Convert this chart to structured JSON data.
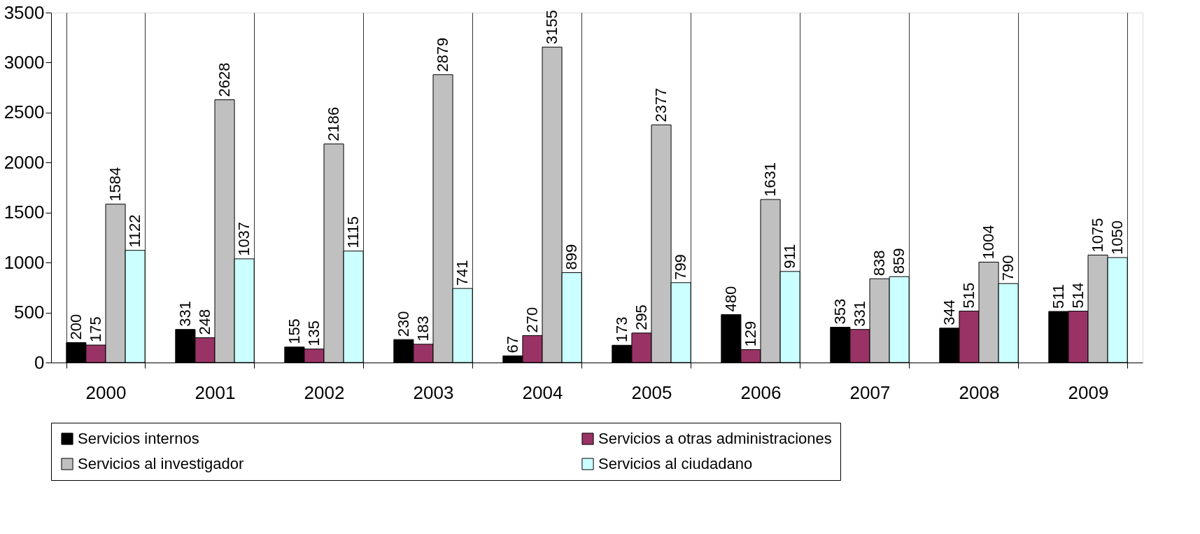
{
  "chart_data": {
    "type": "bar",
    "categories": [
      "2000",
      "2001",
      "2002",
      "2003",
      "2004",
      "2005",
      "2006",
      "2007",
      "2008",
      "2009"
    ],
    "series": [
      {
        "name": "Servicios internos",
        "color": "#000000",
        "values": [
          200,
          331,
          155,
          230,
          67,
          173,
          480,
          353,
          344,
          511
        ]
      },
      {
        "name": "Servicios a otras administraciones",
        "color": "#993366",
        "values": [
          175,
          248,
          135,
          183,
          270,
          295,
          129,
          331,
          515,
          514
        ]
      },
      {
        "name": "Servicios al investigador",
        "color": "#c0c0c0",
        "values": [
          1584,
          2628,
          2186,
          2879,
          3155,
          2377,
          1631,
          838,
          1004,
          1075
        ]
      },
      {
        "name": "Servicios al ciudadano",
        "color": "#ccffff",
        "values": [
          1122,
          1037,
          1115,
          741,
          899,
          799,
          911,
          859,
          790,
          1050
        ]
      }
    ],
    "ylim": [
      0,
      3500
    ],
    "yticks": [
      0,
      500,
      1000,
      1500,
      2000,
      2500,
      3000,
      3500
    ],
    "grid": "x",
    "legend": "bottom",
    "data_labels": true
  }
}
